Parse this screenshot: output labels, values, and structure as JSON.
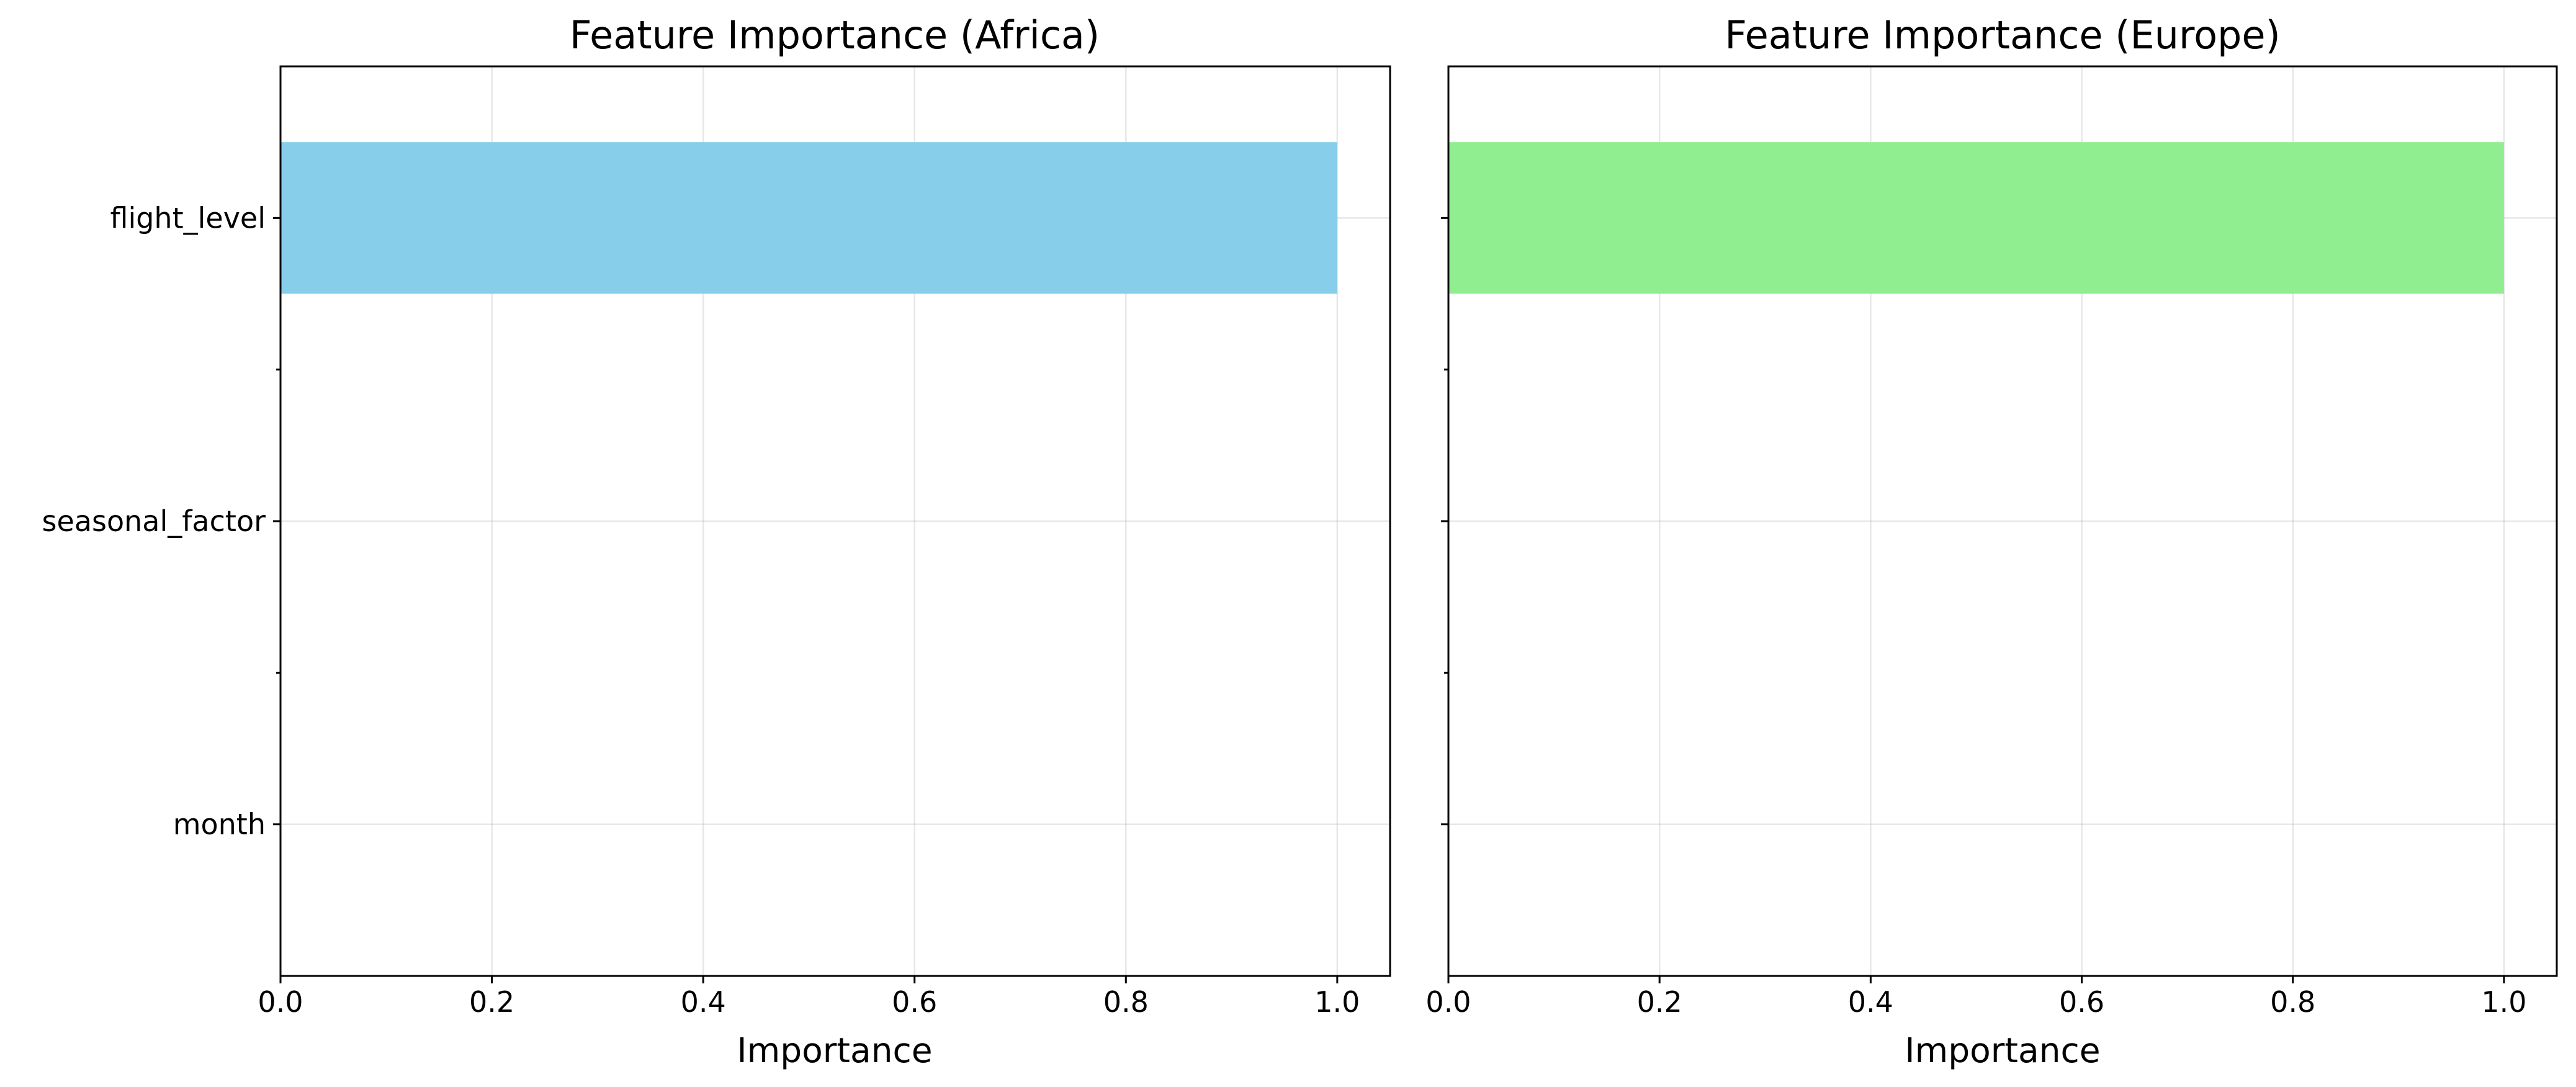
{
  "chart_data": [
    {
      "type": "bar",
      "orientation": "horizontal",
      "title": "Feature Importance (Africa)",
      "xlabel": "Importance",
      "ylabel": "",
      "xlim": [
        0.0,
        1.05
      ],
      "xticks": [
        0.0,
        0.2,
        0.4,
        0.6,
        0.8,
        1.0
      ],
      "xtick_labels": [
        "0.0",
        "0.2",
        "0.4",
        "0.6",
        "0.8",
        "1.0"
      ],
      "categories": [
        "month",
        "seasonal_factor",
        "flight_level"
      ],
      "values": [
        0.0,
        0.0,
        1.0
      ],
      "color": "#87CEEB",
      "grid": true,
      "show_ytick_labels": true
    },
    {
      "type": "bar",
      "orientation": "horizontal",
      "title": "Feature Importance (Europe)",
      "xlabel": "Importance",
      "ylabel": "",
      "xlim": [
        0.0,
        1.05
      ],
      "xticks": [
        0.0,
        0.2,
        0.4,
        0.6,
        0.8,
        1.0
      ],
      "xtick_labels": [
        "0.0",
        "0.2",
        "0.4",
        "0.6",
        "0.8",
        "1.0"
      ],
      "categories": [
        "month",
        "seasonal_factor",
        "flight_level"
      ],
      "values": [
        0.0,
        0.0,
        1.0
      ],
      "color": "#90EE90",
      "grid": true,
      "show_ytick_labels": false
    }
  ]
}
